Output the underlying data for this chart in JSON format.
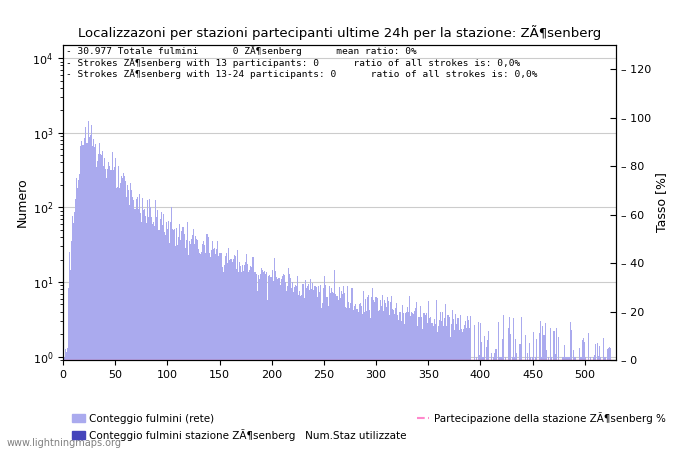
{
  "title": "Localizzazoni per stazioni partecipanti ultime 24h per la stazione: ZÃ¶senberg",
  "ylabel_left": "Numero",
  "ylabel_right": "Tasso [%]",
  "annotation_lines": [
    "30.977 Totale fulmini      0 ZÃ¶senberg      mean ratio: 0%",
    "Strokes ZÃ¶senberg with 13 participants: 0      ratio of all strokes is: 0,0%",
    "Strokes ZÃ¶senberg with 13-24 participants: 0      ratio of all strokes is: 0,0%"
  ],
  "bar_color_light": "#aaaaee",
  "bar_color_dark": "#4444bb",
  "line_color": "#ff88cc",
  "background_color": "#ffffff",
  "grid_color": "#cccccc",
  "watermark": "www.lightningmaps.org",
  "legend_labels": [
    "Conteggio fulmini (rete)",
    "Conteggio fulmini stazione ZÃ¶senberg",
    "Num.Staz utilizzate",
    "Partecipazione della stazione ZÃ¶senberg %"
  ],
  "xlim": [
    0,
    530
  ],
  "ylim_right": [
    0,
    130
  ],
  "right_ticks": [
    0,
    20,
    40,
    60,
    80,
    100,
    120
  ],
  "right_tick_labels": [
    "0",
    "20",
    "40",
    "60",
    "80",
    "100",
    "120"
  ]
}
